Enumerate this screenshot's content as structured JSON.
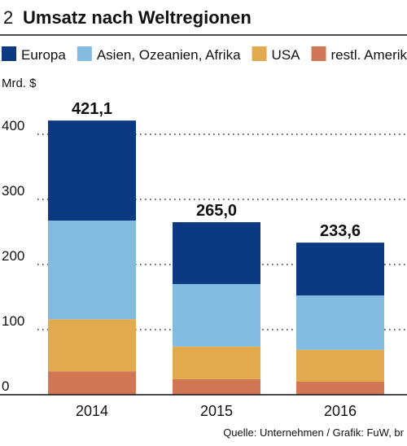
{
  "chart_data": {
    "type": "stacked_bar",
    "figure_number": "2",
    "title": "Umsatz nach Weltregionen",
    "ylabel": "Mrd. $",
    "source": "Quelle: Unternehmen / Grafik: FuW, br",
    "categories": [
      "2014",
      "2015",
      "2016"
    ],
    "series": [
      {
        "name": "restl. Amerika",
        "color": "#d27756",
        "values": [
          36,
          24,
          20
        ]
      },
      {
        "name": "USA",
        "color": "#e2aa4f",
        "values": [
          80,
          50,
          49
        ]
      },
      {
        "name": "Asien, Ozeanien, Afrika",
        "color": "#82bbdf",
        "values": [
          151.5,
          96,
          83.5
        ]
      },
      {
        "name": "Europa",
        "color": "#0b3a83",
        "values": [
          153.6,
          95,
          81.1
        ]
      }
    ],
    "legend_order": [
      3,
      2,
      1,
      0
    ],
    "totals": [
      421.1,
      265,
      233.6
    ],
    "total_labels": [
      "421,1",
      "265,0",
      "233,6"
    ],
    "ylim": [
      0,
      490
    ],
    "yticks": [
      0,
      100,
      200,
      300,
      400
    ],
    "grid": true
  }
}
